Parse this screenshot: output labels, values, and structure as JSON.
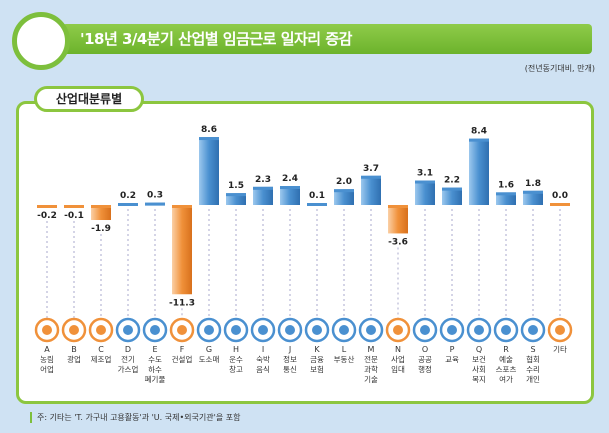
{
  "header": {
    "title": "'18년 3/4분기 산업별 임금근로 일자리 증감",
    "unit": "(전년동기대비, 만개)",
    "tab": "산업대분류별"
  },
  "footnote": "주: 기타는 'T. 가구내 고용활동'과 'U. 국제•외국기관'을 포함",
  "colors": {
    "positive": "#4a90d0",
    "negative": "#f0913a",
    "green": "#8cc63f"
  },
  "chart_data": {
    "type": "bar",
    "title": "'18년 3/4분기 산업별 임금근로 일자리 증감",
    "ylabel": "전년동기대비, 만개",
    "codes": [
      "A",
      "B",
      "C",
      "D",
      "E",
      "F",
      "G",
      "H",
      "I",
      "J",
      "K",
      "L",
      "M",
      "N",
      "O",
      "P",
      "Q",
      "R",
      "S",
      ""
    ],
    "categories": [
      "농림 어업",
      "광업",
      "제조업",
      "전기 가스업",
      "수도 하수 폐기물",
      "건설업",
      "도소매",
      "운수 창고",
      "숙박 음식",
      "정보 통신",
      "금융 보험",
      "부동산",
      "전문 과학 기술",
      "사업 임대",
      "공공 행정",
      "교육",
      "보건 사회 복지",
      "예술 스포츠 여가",
      "협회 수리 개인",
      "기타"
    ],
    "values": [
      -0.2,
      -0.1,
      -1.9,
      0.2,
      0.3,
      -11.3,
      8.6,
      1.5,
      2.3,
      2.4,
      0.1,
      2.0,
      3.7,
      -3.6,
      3.1,
      2.2,
      8.4,
      1.6,
      1.8,
      0.0
    ],
    "labels": [
      "-0.2",
      "-0.1",
      "-1.9",
      "0.2",
      "0.3",
      "-11.3",
      "8.6",
      "1.5",
      "2.3",
      "2.4",
      "0.1",
      "2.0",
      "3.7",
      "-3.6",
      "3.1",
      "2.2",
      "8.4",
      "1.6",
      "1.8",
      "0.0"
    ],
    "icon_orange": [
      true,
      true,
      true,
      false,
      false,
      true,
      false,
      false,
      false,
      false,
      false,
      false,
      false,
      true,
      false,
      false,
      false,
      false,
      false,
      true
    ]
  }
}
